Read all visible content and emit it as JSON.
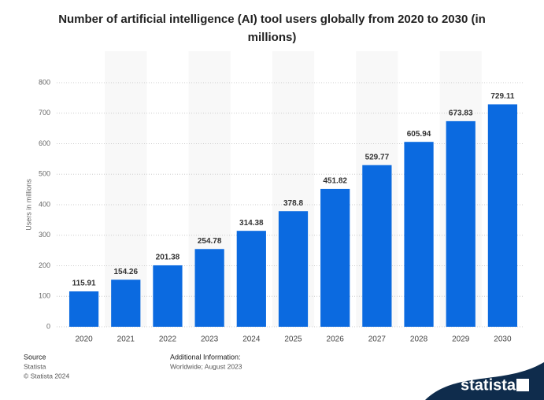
{
  "chart_data": {
    "type": "bar",
    "title": "Number of artificial intelligence (AI) tool users globally from 2020 to 2030 (in millions)",
    "y_label": "Users in millions",
    "categories": [
      "2020",
      "2021",
      "2022",
      "2023",
      "2024",
      "2025",
      "2026",
      "2027",
      "2028",
      "2029",
      "2030"
    ],
    "values": [
      115.91,
      154.26,
      201.38,
      254.78,
      314.38,
      378.8,
      451.82,
      529.77,
      605.94,
      673.83,
      729.11
    ],
    "color": "#0b6ae0",
    "ylim": [
      0,
      800
    ],
    "yticks": [
      0,
      100,
      200,
      300,
      400,
      500,
      600,
      700,
      800
    ],
    "grid": true
  },
  "footer": {
    "source_title": "Source",
    "source": "Statista",
    "copyright": "© Statista 2024",
    "info_title": "Additional Information:",
    "info": "Worldwide; August 2023",
    "logo": "statista"
  }
}
